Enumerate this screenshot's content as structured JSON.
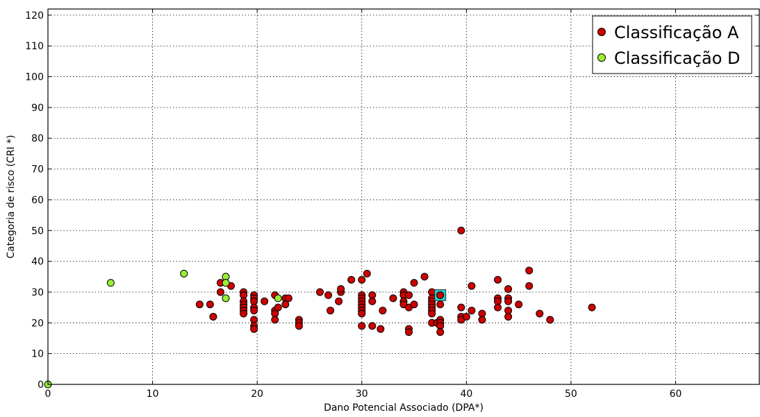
{
  "chart_data": {
    "type": "scatter",
    "title": "",
    "xlabel": "Dano Potencial Associado (DPA*)",
    "ylabel": "Categoria de risco (CRI *)",
    "xlim": [
      0,
      68
    ],
    "ylim": [
      0,
      122
    ],
    "xticks": [
      0,
      10,
      20,
      30,
      40,
      50,
      60
    ],
    "yticks": [
      0,
      10,
      20,
      30,
      40,
      50,
      60,
      70,
      80,
      90,
      100,
      110,
      120
    ],
    "grid": true,
    "legend_position": "top-right",
    "series": [
      {
        "name": "Classificação A",
        "color": "#cc0000",
        "points": [
          [
            14.5,
            26
          ],
          [
            15.5,
            26
          ],
          [
            15.8,
            22
          ],
          [
            16.5,
            30
          ],
          [
            16.5,
            33
          ],
          [
            17.5,
            32
          ],
          [
            18.7,
            30
          ],
          [
            18.7,
            29
          ],
          [
            18.7,
            27
          ],
          [
            18.7,
            26
          ],
          [
            18.7,
            25
          ],
          [
            18.7,
            24
          ],
          [
            18.7,
            23
          ],
          [
            19.7,
            29
          ],
          [
            19.7,
            28
          ],
          [
            19.7,
            27
          ],
          [
            19.7,
            25
          ],
          [
            19.7,
            24
          ],
          [
            19.7,
            21
          ],
          [
            19.7,
            19
          ],
          [
            19.7,
            18
          ],
          [
            20.7,
            27
          ],
          [
            21.7,
            29
          ],
          [
            21.7,
            24
          ],
          [
            21.7,
            23
          ],
          [
            21.7,
            21
          ],
          [
            22,
            25
          ],
          [
            22.7,
            28
          ],
          [
            22.7,
            26
          ],
          [
            23,
            28
          ],
          [
            24,
            21
          ],
          [
            24,
            20
          ],
          [
            24,
            19
          ],
          [
            26,
            30
          ],
          [
            26.8,
            29
          ],
          [
            27,
            24
          ],
          [
            27.8,
            27
          ],
          [
            28,
            30
          ],
          [
            28,
            31
          ],
          [
            29,
            34
          ],
          [
            30,
            34
          ],
          [
            30,
            29
          ],
          [
            30,
            28
          ],
          [
            30,
            27
          ],
          [
            30,
            26
          ],
          [
            30,
            25
          ],
          [
            30,
            24
          ],
          [
            30,
            23
          ],
          [
            30,
            19
          ],
          [
            30.5,
            36
          ],
          [
            31,
            29
          ],
          [
            31,
            27
          ],
          [
            31,
            19
          ],
          [
            31.8,
            18
          ],
          [
            32,
            24
          ],
          [
            33,
            28
          ],
          [
            34,
            30
          ],
          [
            34,
            29
          ],
          [
            34,
            27
          ],
          [
            34,
            26
          ],
          [
            34.5,
            29
          ],
          [
            34.5,
            25
          ],
          [
            34.5,
            18
          ],
          [
            34.5,
            17
          ],
          [
            35,
            33
          ],
          [
            35,
            26
          ],
          [
            36,
            35
          ],
          [
            36.7,
            30
          ],
          [
            36.7,
            28
          ],
          [
            36.7,
            27
          ],
          [
            36.7,
            26
          ],
          [
            36.7,
            25
          ],
          [
            36.7,
            24
          ],
          [
            36.7,
            23
          ],
          [
            36.7,
            20
          ],
          [
            37.2,
            20
          ],
          [
            37.5,
            29
          ],
          [
            37.5,
            26
          ],
          [
            37.5,
            21
          ],
          [
            37.5,
            20
          ],
          [
            37.5,
            19
          ],
          [
            37.5,
            17
          ],
          [
            39.5,
            50
          ],
          [
            39.5,
            25
          ],
          [
            39.5,
            22
          ],
          [
            39.5,
            21
          ],
          [
            40,
            22
          ],
          [
            40.5,
            32
          ],
          [
            40.5,
            24
          ],
          [
            41.5,
            23
          ],
          [
            41.5,
            21
          ],
          [
            43,
            34
          ],
          [
            43,
            28
          ],
          [
            43,
            27
          ],
          [
            43,
            25
          ],
          [
            44,
            31
          ],
          [
            44,
            28
          ],
          [
            44,
            27
          ],
          [
            44,
            24
          ],
          [
            44,
            22
          ],
          [
            45,
            26
          ],
          [
            46,
            37
          ],
          [
            46,
            32
          ],
          [
            47,
            23
          ],
          [
            48,
            21
          ],
          [
            52,
            25
          ]
        ]
      },
      {
        "name": "Classificação D",
        "color": "#99ee33",
        "points": [
          [
            0,
            0
          ],
          [
            6,
            33
          ],
          [
            13,
            36
          ],
          [
            17,
            35
          ],
          [
            17,
            33
          ],
          [
            17,
            28
          ],
          [
            22,
            28
          ]
        ]
      }
    ],
    "highlight": {
      "x": 37.5,
      "y": 29,
      "shape": "square",
      "color": "#22cccc"
    }
  }
}
